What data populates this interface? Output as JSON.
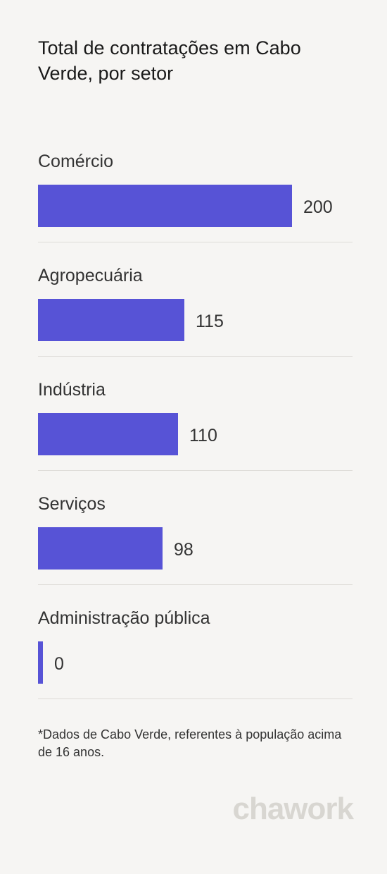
{
  "header": {
    "title": "Total de contratações em Cabo Verde, por setor"
  },
  "chart_data": {
    "type": "bar",
    "orientation": "horizontal",
    "title": "Total de contratações em Cabo Verde, por setor",
    "categories": [
      "Comércio",
      "Agropecuária",
      "Indústria",
      "Serviços",
      "Administração pública"
    ],
    "values": [
      200,
      115,
      110,
      98,
      0
    ],
    "value_labels": [
      "200",
      "115",
      "110",
      "98",
      "0"
    ],
    "xlim": [
      0,
      200
    ],
    "grid": false,
    "bar_color": "#5753d6"
  },
  "footnote": "*Dados de Cabo Verde, referentes à população acima de 16 anos.",
  "brand": {
    "logo_text": "chawork",
    "logo_color": "#d8d6d1"
  }
}
